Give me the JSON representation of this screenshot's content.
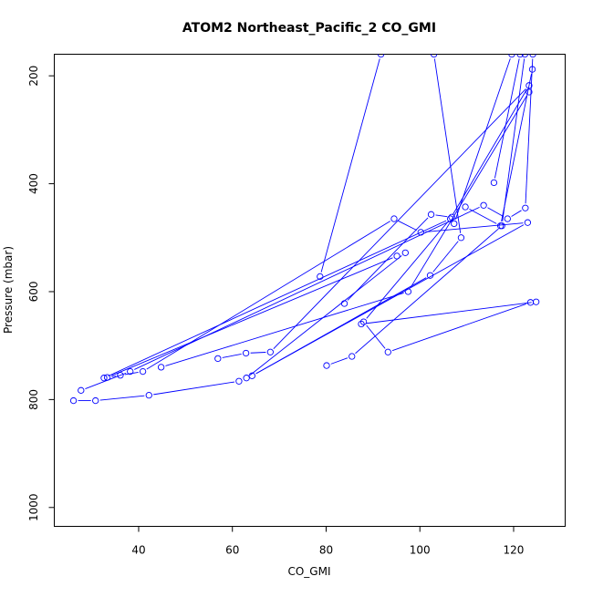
{
  "chart_data": {
    "type": "line",
    "title": "ATOM2 Northeast_Pacific_2 CO_GMI",
    "xlabel": "CO_GMI",
    "ylabel": "Pressure (mbar)",
    "xlim": [
      22,
      131
    ],
    "ylim": [
      1035,
      160
    ],
    "y_reversed": true,
    "x_ticks": [
      40,
      60,
      80,
      100,
      120
    ],
    "y_ticks": [
      200,
      400,
      600,
      800,
      1000
    ],
    "series_color": "#0000ff",
    "grid": false,
    "legend": "none",
    "series": [
      {
        "points": [
          [
            26.1,
            802
          ],
          [
            30.8,
            802
          ],
          [
            42.2,
            792
          ],
          [
            61.4,
            766
          ],
          [
            63,
            760
          ],
          [
            96.9,
            528
          ],
          [
            95.1,
            534
          ],
          [
            33.3,
            759
          ],
          [
            36.1,
            755
          ],
          [
            40.9,
            748
          ],
          [
            94.5,
            465
          ],
          [
            100.2,
            490
          ],
          [
            123,
            472
          ],
          [
            64.2,
            756
          ],
          [
            102.2,
            570
          ],
          [
            108.8,
            500
          ],
          [
            103,
            160
          ]
        ]
      },
      {
        "points": [
          [
            78.7,
            572
          ],
          [
            91.7,
            160
          ]
        ]
      },
      {
        "points": [
          [
            27.7,
            783
          ],
          [
            38.2,
            748
          ],
          [
            113.6,
            440
          ],
          [
            118.7,
            465
          ],
          [
            122.5,
            445
          ],
          [
            124.1,
            160
          ]
        ]
      },
      {
        "points": [
          [
            80.1,
            737
          ],
          [
            85.5,
            720
          ],
          [
            117.5,
            478
          ],
          [
            122.4,
            160
          ]
        ]
      },
      {
        "points": [
          [
            83.9,
            622
          ],
          [
            102.4,
            457
          ],
          [
            106.8,
            462
          ],
          [
            88,
            656
          ],
          [
            93.2,
            712
          ],
          [
            123.6,
            620
          ],
          [
            124.8,
            619
          ],
          [
            87.5,
            660
          ]
        ]
      },
      {
        "points": [
          [
            56.9,
            724
          ],
          [
            62.9,
            714
          ],
          [
            68.1,
            712
          ],
          [
            123.3,
            218
          ],
          [
            106.5,
            465
          ],
          [
            32.6,
            760
          ]
        ]
      },
      {
        "points": [
          [
            107.3,
            474
          ],
          [
            119.6,
            160
          ]
        ]
      },
      {
        "points": [
          [
            109.7,
            443
          ],
          [
            117.2,
            478
          ],
          [
            124.0,
            188
          ]
        ]
      },
      {
        "points": [
          [
            115.8,
            398
          ],
          [
            121.4,
            160
          ]
        ]
      },
      {
        "points": [
          [
            44.8,
            740
          ],
          [
            97.5,
            600
          ],
          [
            123.3,
            230
          ]
        ]
      }
    ]
  }
}
